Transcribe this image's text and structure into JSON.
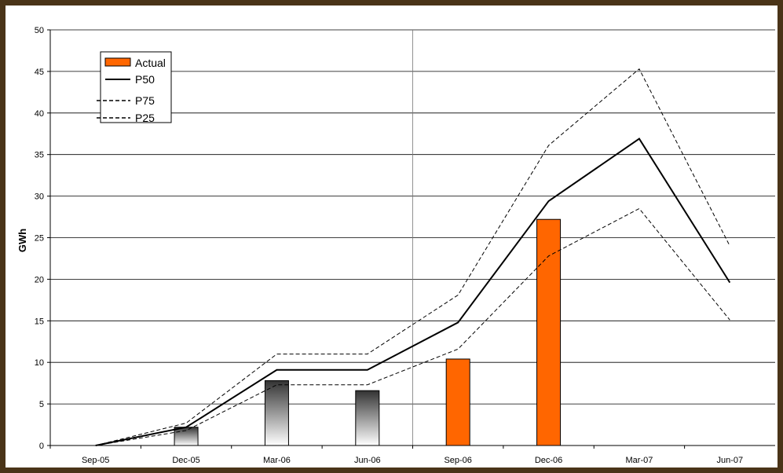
{
  "chart_data": {
    "type": "bar",
    "title": "",
    "xlabel": "",
    "ylabel": "GWh",
    "ylim": [
      0,
      50
    ],
    "yticks": [
      0,
      5,
      10,
      15,
      20,
      25,
      30,
      35,
      40,
      45,
      50
    ],
    "categories": [
      "Sep-05",
      "Dec-05",
      "Mar-06",
      "Jun-06",
      "Sep-06",
      "Dec-06",
      "Mar-07",
      "Jun-07"
    ],
    "grid": true,
    "legend_position": "top-left",
    "series": [
      {
        "name": "Actual",
        "type": "bar",
        "values": [
          null,
          2.2,
          7.8,
          6.6,
          10.4,
          27.2,
          null,
          null
        ],
        "color": "#ff6600"
      },
      {
        "name": "P50",
        "type": "line",
        "style": "solid",
        "values": [
          0,
          2.2,
          9.1,
          9.1,
          14.8,
          29.4,
          36.9,
          19.6
        ],
        "color": "#000000"
      },
      {
        "name": "P75",
        "type": "line",
        "style": "dashed",
        "values": [
          0,
          2.7,
          11.0,
          11.0,
          18.1,
          36.1,
          45.3,
          24.0
        ],
        "color": "#000000"
      },
      {
        "name": "P25",
        "type": "line",
        "style": "dashed",
        "values": [
          0,
          1.8,
          7.3,
          7.3,
          11.6,
          22.8,
          28.5,
          15.1
        ],
        "color": "#000000"
      }
    ],
    "colors": {
      "background": "#ffffff",
      "frame": "#4a3418",
      "grid": "#000000",
      "actual_bar": "#ff6600",
      "historical_bar_top": "#333333",
      "historical_bar_bottom": "#ffffff"
    }
  }
}
